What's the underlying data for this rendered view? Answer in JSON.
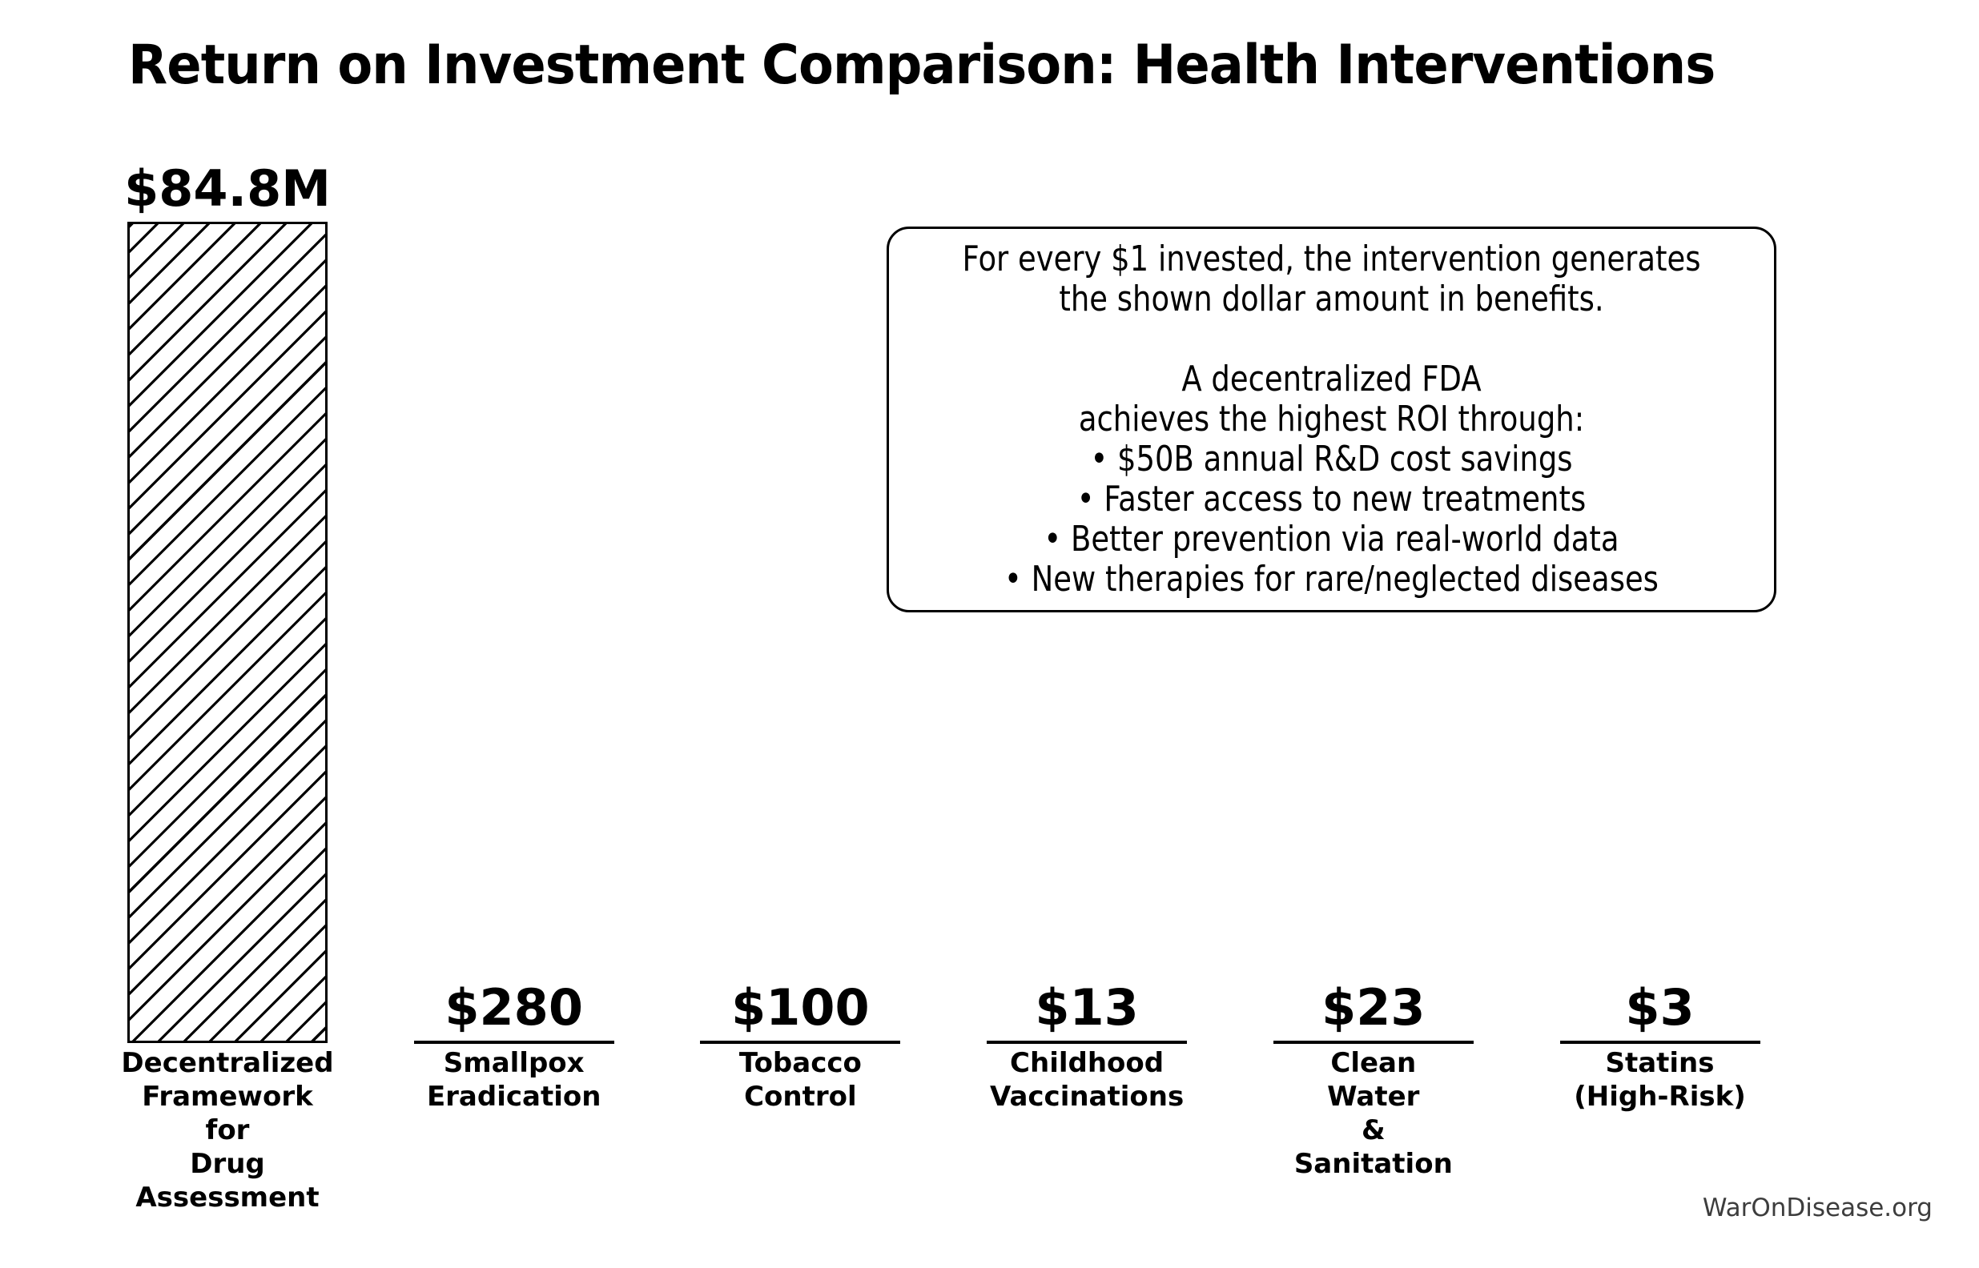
{
  "chart_data": {
    "type": "bar",
    "title": "Return on Investment Comparison: Health Interventions",
    "categories": [
      "Decentralized Framework for Drug Assessment",
      "Smallpox Eradication",
      "Tobacco Control",
      "Childhood Vaccinations",
      "Clean Water & Sanitation",
      "Statins (High-Risk)"
    ],
    "category_label_lines": [
      [
        "Decentralized",
        "Framework",
        "for",
        "Drug",
        "Assessment"
      ],
      [
        "Smallpox",
        "Eradication"
      ],
      [
        "Tobacco",
        "Control"
      ],
      [
        "Childhood",
        "Vaccinations"
      ],
      [
        "Clean",
        "Water",
        "&",
        "Sanitation"
      ],
      [
        "Statins",
        "(High-Risk)"
      ]
    ],
    "values": [
      84800000,
      280,
      100,
      13,
      23,
      3
    ],
    "value_labels": [
      "$84.8M",
      "$280",
      "$100",
      "$13",
      "$23",
      "$3"
    ],
    "xlabel": "",
    "ylabel": "",
    "ylim": [
      0,
      84800000
    ],
    "grid": false,
    "legend": false,
    "axes_visible": false,
    "bar_fill_color": "#ffffff",
    "bar_edge_color": "#000000",
    "bar_hatch": "///",
    "annotation_lines": [
      "For every $1 invested, the intervention generates",
      "the shown dollar amount in benefits.",
      "",
      "A decentralized FDA",
      "achieves the highest ROI through:",
      "• $50B annual R&D cost savings",
      "• Faster access to new treatments",
      "• Better prevention via real-world data",
      "• New therapies for rare/neglected diseases"
    ],
    "watermark": "WarOnDisease.org"
  }
}
